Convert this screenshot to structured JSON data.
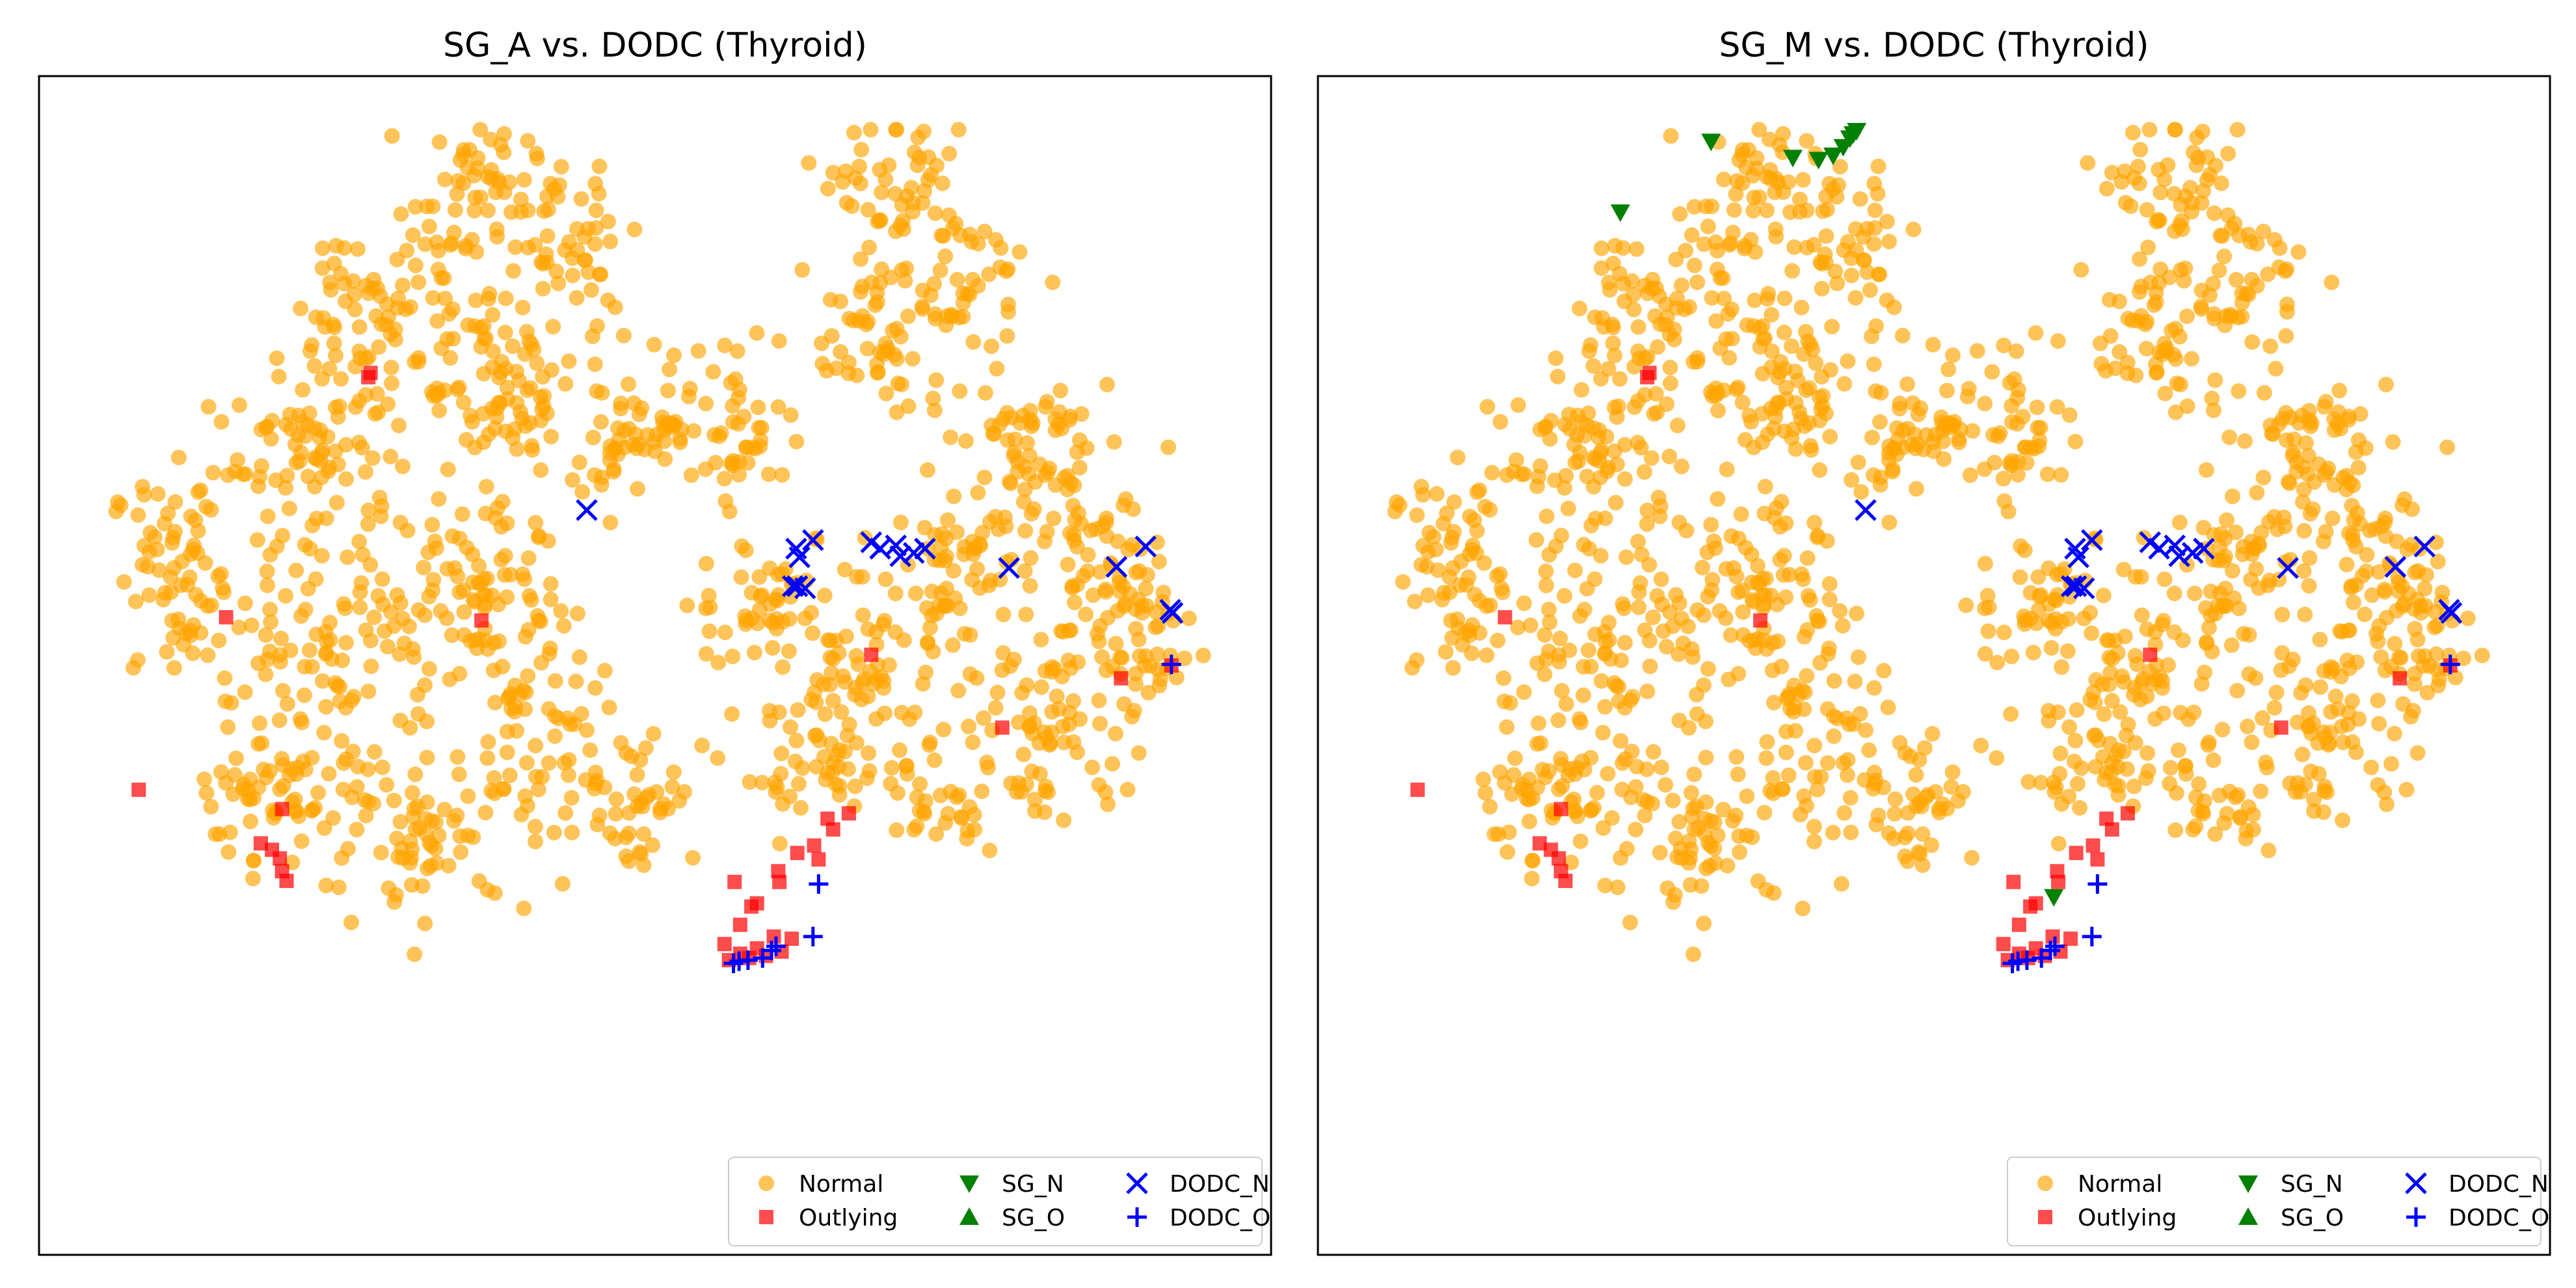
{
  "colors": {
    "normal": "#FFA500",
    "outlying": "#FF0000",
    "sg": "#008000",
    "dodc": "#0000FF"
  },
  "legend_labels": {
    "normal": "Normal",
    "outlying": "Outlying",
    "sg_n": "SG_N",
    "sg_o": "SG_O",
    "dodc_n": "DODC_N",
    "dodc_o": "DODC_O"
  },
  "chart_data": [
    {
      "type": "scatter",
      "title": "SG_A vs. DODC (Thyroid)",
      "xlabel": "",
      "ylabel": "",
      "xlim": [
        -55,
        55
      ],
      "ylim": [
        -55,
        55
      ],
      "axis_ticks": "hidden",
      "grid": false,
      "legend_placement": "lower right",
      "series": [
        {
          "name": "Outlying",
          "marker": "square",
          "points": [
            [
              -25.6,
              26.9
            ],
            [
              -25.4,
              27.3
            ],
            [
              -38.3,
              4.5
            ],
            [
              -15.5,
              4.2
            ],
            [
              -46.1,
              -11.6
            ],
            [
              -33.3,
              -13.4
            ],
            [
              -35.2,
              -16.6
            ],
            [
              -34.2,
              -17.2
            ],
            [
              -33.5,
              -18.0
            ],
            [
              -33.3,
              -19.2
            ],
            [
              -32.9,
              -20.1
            ],
            [
              19.3,
              1.0
            ],
            [
              15.4,
              -14.3
            ],
            [
              17.3,
              -13.8
            ],
            [
              15.9,
              -15.3
            ],
            [
              14.2,
              -16.8
            ],
            [
              14.6,
              -18.1
            ],
            [
              12.7,
              -17.5
            ],
            [
              11.0,
              -19.2
            ],
            [
              11.1,
              -20.2
            ],
            [
              9.1,
              -22.2
            ],
            [
              7.1,
              -20.2
            ],
            [
              8.6,
              -22.5
            ],
            [
              7.6,
              -24.2
            ],
            [
              6.2,
              -26.0
            ],
            [
              7.6,
              -26.9
            ],
            [
              9.1,
              -26.4
            ],
            [
              10.6,
              -25.3
            ],
            [
              12.2,
              -25.5
            ],
            [
              11.3,
              -26.7
            ],
            [
              8.4,
              -27.3
            ],
            [
              9.9,
              -27.1
            ],
            [
              6.6,
              -27.5
            ],
            [
              31.0,
              -5.8
            ],
            [
              41.6,
              -1.2
            ],
            [
              46.1,
              0.0
            ]
          ]
        },
        {
          "name": "DODC_N",
          "marker": "x",
          "points": [
            [
              -6.1,
              14.5
            ],
            [
              12.6,
              10.9
            ],
            [
              14.1,
              11.7
            ],
            [
              19.3,
              11.5
            ],
            [
              20.1,
              10.9
            ],
            [
              21.5,
              11.2
            ],
            [
              21.9,
              10.2
            ],
            [
              23.1,
              10.5
            ],
            [
              24.1,
              10.9
            ],
            [
              12.9,
              10.1
            ],
            [
              12.7,
              7.4
            ],
            [
              13.4,
              7.2
            ],
            [
              12.3,
              7.4
            ],
            [
              31.6,
              9.1
            ],
            [
              41.2,
              9.2
            ],
            [
              43.8,
              11.1
            ],
            [
              46.0,
              5.2
            ],
            [
              46.2,
              4.9
            ]
          ]
        },
        {
          "name": "DODC_O",
          "marker": "plus",
          "points": [
            [
              46.1,
              0.1
            ],
            [
              14.6,
              -20.4
            ],
            [
              14.1,
              -25.3
            ],
            [
              10.8,
              -26.2
            ],
            [
              10.4,
              -26.6
            ],
            [
              9.6,
              -27.3
            ],
            [
              8.3,
              -27.5
            ],
            [
              7.5,
              -27.6
            ],
            [
              7.0,
              -27.8
            ]
          ]
        },
        {
          "name": "SG_N",
          "marker": "triangle-down",
          "points": []
        },
        {
          "name": "SG_O",
          "marker": "triangle-up",
          "points": []
        }
      ]
    },
    {
      "type": "scatter",
      "title": "SG_M vs. DODC (Thyroid)",
      "xlabel": "",
      "ylabel": "",
      "xlim": [
        -55,
        55
      ],
      "ylim": [
        -55,
        55
      ],
      "axis_ticks": "hidden",
      "grid": false,
      "legend_placement": "lower right",
      "series": [
        {
          "name": "Outlying",
          "marker": "square",
          "points": [
            [
              -25.6,
              26.9
            ],
            [
              -25.4,
              27.3
            ],
            [
              -38.3,
              4.5
            ],
            [
              -15.5,
              4.2
            ],
            [
              -46.1,
              -11.6
            ],
            [
              -33.3,
              -13.4
            ],
            [
              -35.2,
              -16.6
            ],
            [
              -34.2,
              -17.2
            ],
            [
              -33.5,
              -18.0
            ],
            [
              -33.3,
              -19.2
            ],
            [
              -32.9,
              -20.1
            ],
            [
              19.3,
              1.0
            ],
            [
              15.4,
              -14.3
            ],
            [
              17.3,
              -13.8
            ],
            [
              15.9,
              -15.3
            ],
            [
              14.2,
              -16.8
            ],
            [
              14.6,
              -18.1
            ],
            [
              12.7,
              -17.5
            ],
            [
              11.0,
              -19.2
            ],
            [
              11.1,
              -20.2
            ],
            [
              9.1,
              -22.2
            ],
            [
              7.1,
              -20.2
            ],
            [
              8.6,
              -22.5
            ],
            [
              7.6,
              -24.2
            ],
            [
              6.2,
              -26.0
            ],
            [
              7.6,
              -26.9
            ],
            [
              9.1,
              -26.4
            ],
            [
              10.6,
              -25.3
            ],
            [
              12.2,
              -25.5
            ],
            [
              11.3,
              -26.7
            ],
            [
              8.4,
              -27.3
            ],
            [
              9.9,
              -27.1
            ],
            [
              6.6,
              -27.5
            ],
            [
              31.0,
              -5.8
            ],
            [
              41.6,
              -1.2
            ],
            [
              46.1,
              0.0
            ]
          ]
        },
        {
          "name": "SG_N",
          "marker": "triangle-down",
          "points": [
            [
              -19.9,
              48.9
            ],
            [
              -12.6,
              47.4
            ],
            [
              -10.3,
              47.2
            ],
            [
              -9.0,
              47.6
            ],
            [
              -8.1,
              48.4
            ],
            [
              -7.5,
              49.2
            ],
            [
              -7.2,
              49.6
            ],
            [
              -6.9,
              49.9
            ],
            [
              -28.0,
              42.3
            ],
            [
              10.7,
              -21.6
            ]
          ]
        },
        {
          "name": "DODC_N",
          "marker": "x",
          "points": [
            [
              -6.1,
              14.5
            ],
            [
              12.6,
              10.9
            ],
            [
              14.1,
              11.7
            ],
            [
              19.3,
              11.5
            ],
            [
              20.1,
              10.9
            ],
            [
              21.5,
              11.2
            ],
            [
              21.9,
              10.2
            ],
            [
              23.1,
              10.5
            ],
            [
              24.1,
              10.9
            ],
            [
              12.9,
              10.1
            ],
            [
              12.7,
              7.4
            ],
            [
              13.4,
              7.2
            ],
            [
              12.3,
              7.4
            ],
            [
              31.6,
              9.1
            ],
            [
              41.2,
              9.2
            ],
            [
              43.8,
              11.1
            ],
            [
              46.0,
              5.2
            ],
            [
              46.2,
              4.9
            ]
          ]
        },
        {
          "name": "DODC_O",
          "marker": "plus",
          "points": [
            [
              46.1,
              0.1
            ],
            [
              14.6,
              -20.4
            ],
            [
              14.1,
              -25.3
            ],
            [
              10.8,
              -26.2
            ],
            [
              10.4,
              -26.6
            ],
            [
              9.6,
              -27.3
            ],
            [
              8.3,
              -27.5
            ],
            [
              7.5,
              -27.6
            ],
            [
              7.0,
              -27.8
            ]
          ]
        },
        {
          "name": "SG_O",
          "marker": "triangle-up",
          "points": []
        }
      ]
    }
  ]
}
